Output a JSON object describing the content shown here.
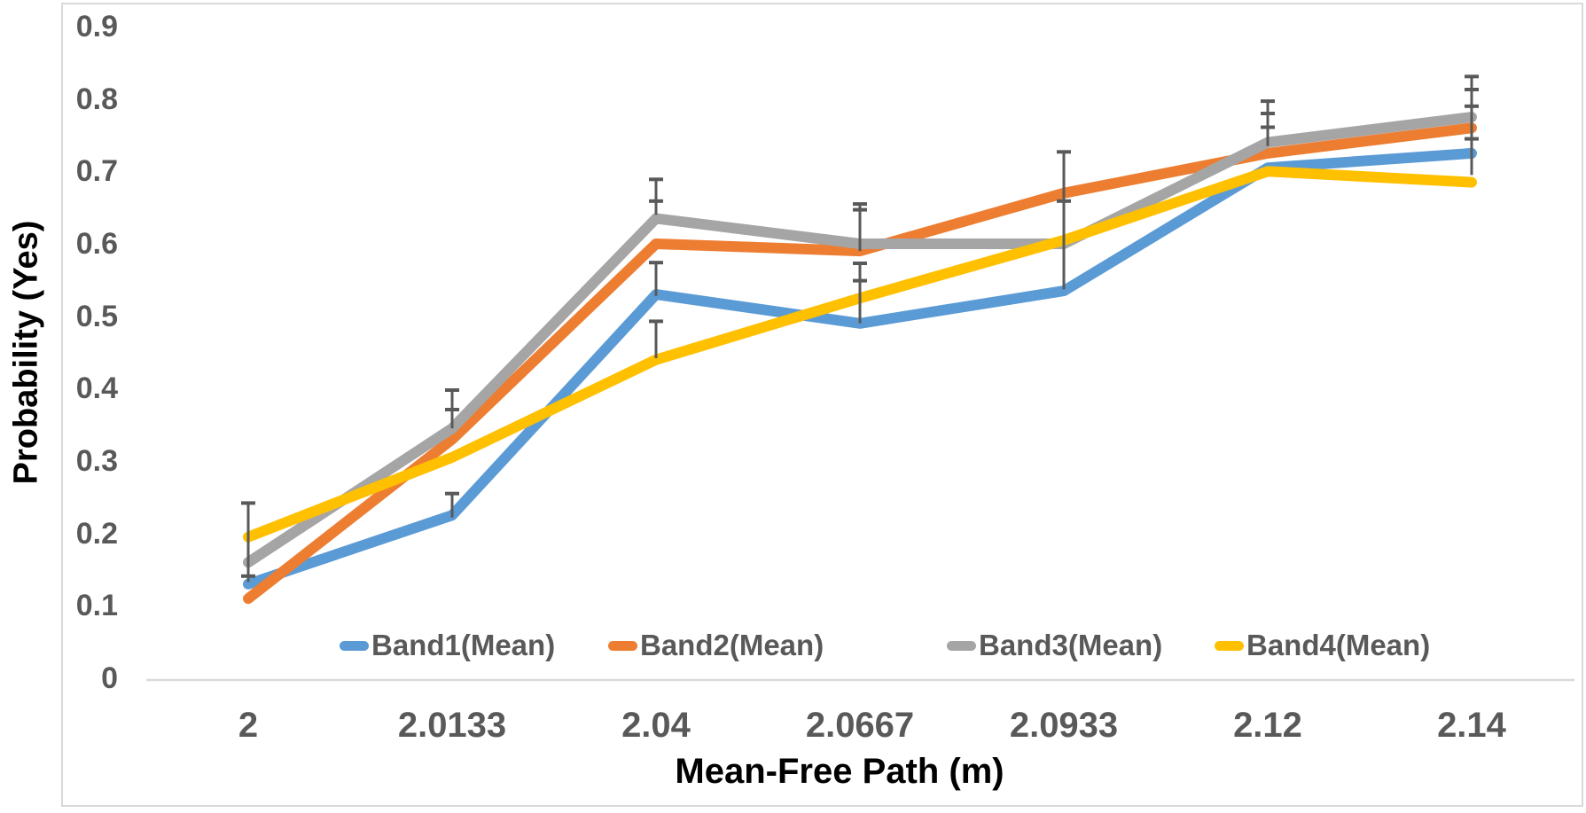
{
  "chart_data": {
    "type": "line",
    "title": "",
    "xlabel": "Mean-Free Path (m)",
    "ylabel": "Probability (Yes)",
    "x_categories": [
      "2",
      "2.0133",
      "2.04",
      "2.0667",
      "2.0933",
      "2.12",
      "2.14"
    ],
    "y_ticks": [
      "0.9",
      "0.8",
      "0.7",
      "0.6",
      "0.5",
      "0.4",
      "0.3",
      "0.2",
      "0.1",
      "0"
    ],
    "ylim": [
      0,
      0.9
    ],
    "grid": false,
    "legend_position": "bottom-inside-horizontal",
    "series": [
      {
        "name": "Band1(Mean)",
        "color": "#5B9BD5",
        "values": [
          0.13,
          0.225,
          0.53,
          0.49,
          0.535,
          0.705,
          0.725
        ]
      },
      {
        "name": "Band2(Mean)",
        "color": "#ED7D31",
        "values": [
          0.11,
          0.33,
          0.6,
          0.59,
          0.67,
          0.725,
          0.76
        ]
      },
      {
        "name": "Band3(Mean)",
        "color": "#A5A5A5",
        "values": [
          0.16,
          0.345,
          0.635,
          0.6,
          0.6,
          0.74,
          0.775
        ]
      },
      {
        "name": "Band4(Mean)",
        "color": "#FFC000",
        "values": [
          0.195,
          0.305,
          0.44,
          0.525,
          0.605,
          0.7,
          0.685
        ]
      }
    ],
    "error_bars": [
      {
        "x_index": 0,
        "from": 0.242,
        "to": 0.133,
        "caps": [
          0.242,
          0.141
        ]
      },
      {
        "x_index": 1,
        "from": 0.398,
        "to": 0.345,
        "caps": [
          0.398,
          0.371
        ]
      },
      {
        "x_index": 1,
        "from": 0.255,
        "to": 0.222,
        "caps": [
          0.255
        ]
      },
      {
        "x_index": 2,
        "from": 0.689,
        "to": 0.64,
        "caps": [
          0.689,
          0.659
        ]
      },
      {
        "x_index": 2,
        "from": 0.574,
        "to": 0.528,
        "caps": [
          0.574
        ]
      },
      {
        "x_index": 2,
        "from": 0.493,
        "to": 0.442,
        "caps": [
          0.493
        ]
      },
      {
        "x_index": 3,
        "from": 0.655,
        "to": 0.59,
        "caps": [
          0.655,
          0.647
        ]
      },
      {
        "x_index": 3,
        "from": 0.573,
        "to": 0.49,
        "caps": [
          0.573,
          0.549
        ]
      },
      {
        "x_index": 4,
        "from": 0.727,
        "to": 0.537,
        "caps": [
          0.727,
          0.659
        ]
      },
      {
        "x_index": 5,
        "from": 0.797,
        "to": 0.735,
        "caps": [
          0.797,
          0.78,
          0.761
        ]
      },
      {
        "x_index": 6,
        "from": 0.831,
        "to": 0.695,
        "caps": [
          0.831,
          0.813,
          0.79,
          0.745
        ]
      }
    ],
    "colors": {
      "tick_text": "#595959",
      "axis_title_text": "#000000",
      "axis_line": "#D9D9D9",
      "chart_border": "#D9D9D9",
      "error_bar": "#595959",
      "background": "#FFFFFF"
    }
  }
}
